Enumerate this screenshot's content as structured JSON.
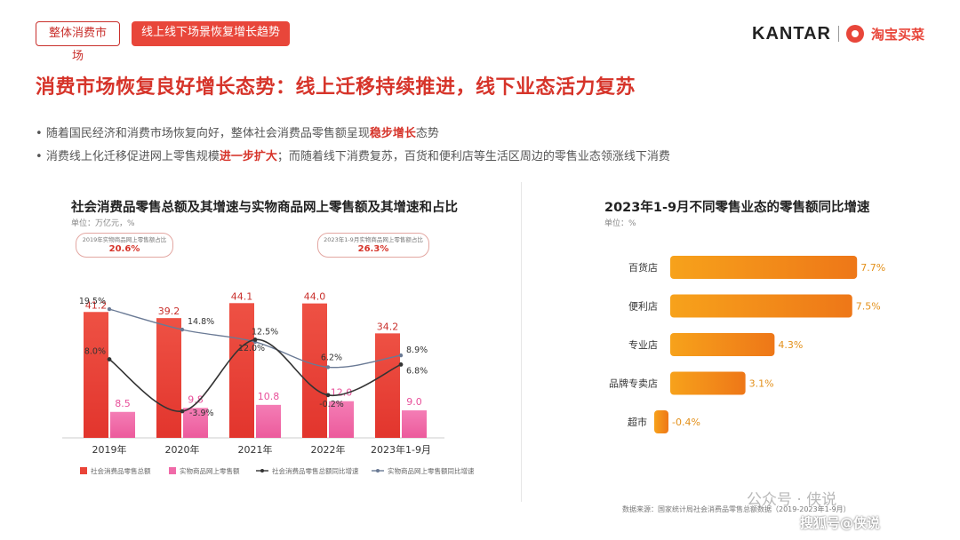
{
  "tags": {
    "section": "整体消费市场",
    "topic": "线上线下场景恢复增长趋势"
  },
  "brand": {
    "kantar": "KANTAR",
    "taobao": "淘宝买菜"
  },
  "page_title": "消费市场恢复良好增长态势：线上迁移持续推进，线下业态活力复苏",
  "bullets": [
    {
      "before": "随着国民经济和消费市场恢复向好，整体社会消费品零售额呈现",
      "highlight": "稳步增长",
      "after": "态势"
    },
    {
      "before": "消费线上化迁移促进网上零售规模",
      "highlight": "进一步扩大",
      "after": "；而随着线下消费复苏，百货和便利店等生活区周边的零售业态领涨线下消费"
    }
  ],
  "colors": {
    "accent": "#d6342a",
    "bar_total": "#ea4438",
    "bar_online": "#f06aa8",
    "line_total": "#333333",
    "line_online": "#6a7a95",
    "hbar_start": "#f7a21b",
    "hbar_end": "#ee7718"
  },
  "left_chart": {
    "title": "社会消费品零售总额及其增速与实物商品网上零售额及其增速和占比",
    "unit": "单位：万亿元，%",
    "callouts": [
      {
        "label": "2019年实物商品网上零售额占比",
        "value": "20.6%"
      },
      {
        "label": "2023年1-9月实物商品网上零售额占比",
        "value": "26.3%"
      }
    ],
    "legend": [
      "社会消费品零售总额",
      "实物商品网上零售额",
      "社会消费品零售总额同比增速",
      "实物商品网上零售额同比增速"
    ]
  },
  "right_chart": {
    "title": "2023年1-9月不同零售业态的零售额同比增速",
    "unit": "单位：%"
  },
  "chart_data": [
    {
      "type": "bar",
      "title": "社会消费品零售总额及其增速与实物商品网上零售额及其增速和占比",
      "categories": [
        "2019年",
        "2020年",
        "2021年",
        "2022年",
        "2023年1-9月"
      ],
      "series": [
        {
          "name": "社会消费品零售总额",
          "kind": "bar",
          "values": [
            41.2,
            39.2,
            44.1,
            44.0,
            34.2
          ],
          "labels": [
            "41.2",
            "39.2",
            "44.1",
            "44.0",
            "34.2"
          ]
        },
        {
          "name": "实物商品网上零售额",
          "kind": "bar",
          "values": [
            8.5,
            9.8,
            10.8,
            12.0,
            9.0
          ],
          "labels": [
            "8.5",
            "9.8",
            "10.8",
            "12.0",
            "9.0"
          ]
        },
        {
          "name": "社会消费品零售总额同比增速",
          "kind": "line",
          "values": [
            8.0,
            -3.9,
            12.5,
            -0.2,
            6.8
          ],
          "labels": [
            "8.0%",
            "-3.9%",
            "12.5%",
            "-0.2%",
            "6.8%"
          ]
        },
        {
          "name": "实物商品网上零售额同比增速",
          "kind": "line",
          "values": [
            19.5,
            14.8,
            12.0,
            6.2,
            8.9
          ],
          "labels": [
            "19.5%",
            "14.8%",
            "12.0%",
            "6.2%",
            "8.9%"
          ]
        }
      ],
      "ylim": [
        0,
        50
      ],
      "y2lim": [
        -10,
        25
      ]
    },
    {
      "type": "bar",
      "orientation": "horizontal",
      "title": "2023年1-9月不同零售业态的零售额同比增速",
      "categories": [
        "百货店",
        "便利店",
        "专业店",
        "品牌专卖店",
        "超市"
      ],
      "values": [
        7.7,
        7.5,
        4.3,
        3.1,
        -0.4
      ],
      "labels": [
        "7.7%",
        "7.5%",
        "4.3%",
        "3.1%",
        "-0.4%"
      ]
    }
  ],
  "source": "数据来源：国家统计局社会消费品零售总额数据（2019-2023年1-9月）",
  "watermark": {
    "line1": "公众号 · 侠说",
    "line2": "搜狐号@侠说"
  }
}
